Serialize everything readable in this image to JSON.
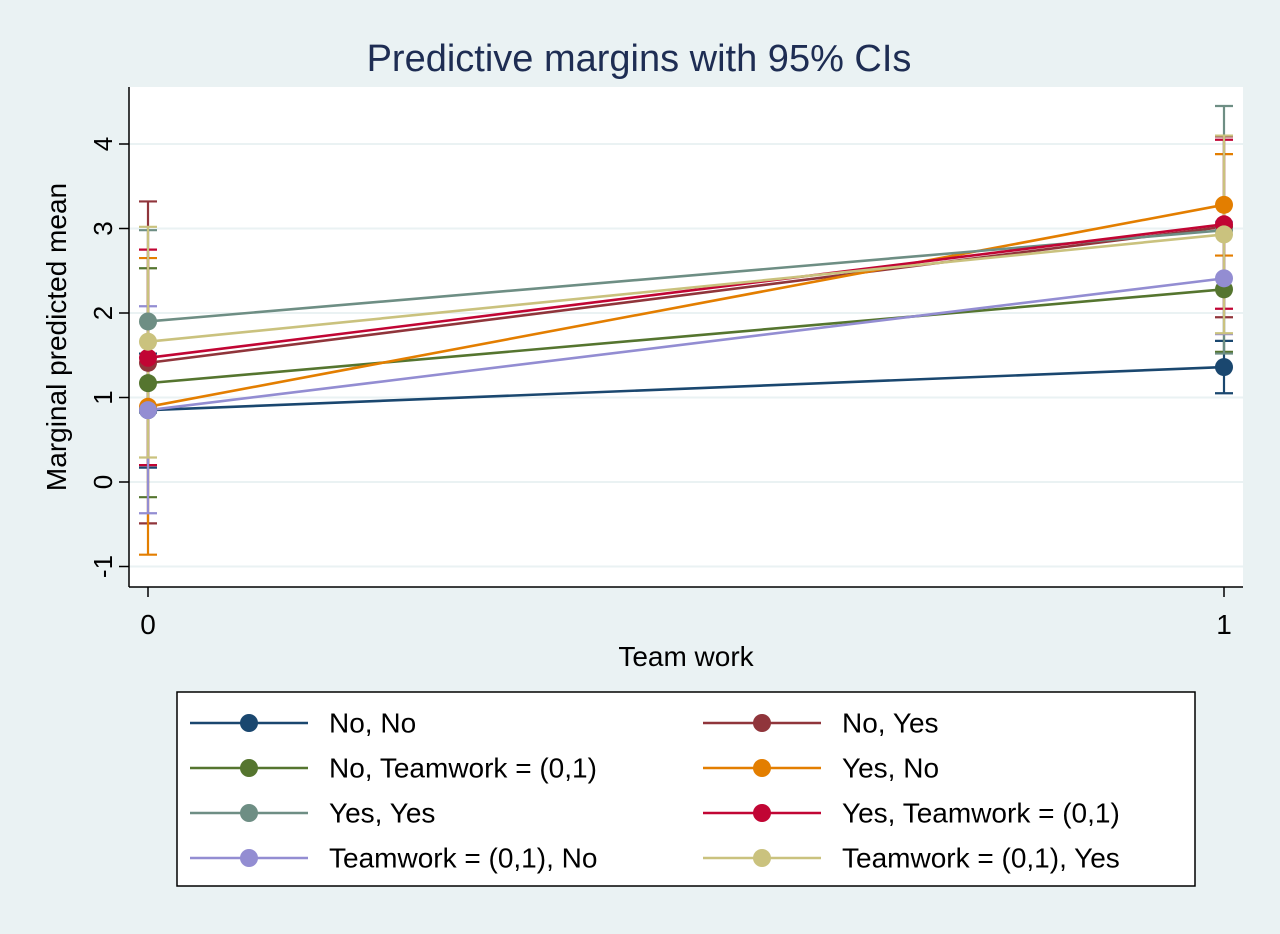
{
  "chart_data": {
    "type": "line",
    "title": "Predictive margins with 95% CIs",
    "xlabel": "Team work",
    "ylabel": "Marginal predicted mean",
    "x": [
      0,
      1
    ],
    "x_ticks": [
      "0",
      "1"
    ],
    "y_ticks": [
      -1,
      0,
      1,
      2,
      3,
      4
    ],
    "xlim": [
      -0.02,
      1.02
    ],
    "ylim": [
      -1.25,
      4.7
    ],
    "grid": true,
    "legend_position": "bottom",
    "series": [
      {
        "name": "No, No",
        "color": "#1a476f",
        "values": [
          0.85,
          1.36
        ],
        "ci_low": [
          0.17,
          1.05
        ],
        "ci_high": [
          1.52,
          1.67
        ]
      },
      {
        "name": "No, Yes",
        "color": "#90353b",
        "values": [
          1.41,
          3.02
        ],
        "ci_low": [
          -0.49,
          1.95
        ],
        "ci_high": [
          3.32,
          4.09
        ]
      },
      {
        "name": "No, Teamwork = (0,1)",
        "color": "#55752f",
        "values": [
          1.17,
          2.28
        ],
        "ci_low": [
          -0.18,
          1.54
        ],
        "ci_high": [
          2.53,
          3.02
        ]
      },
      {
        "name": "Yes, No",
        "color": "#e37e00",
        "values": [
          0.89,
          3.28
        ],
        "ci_low": [
          -0.86,
          2.68
        ],
        "ci_high": [
          2.65,
          3.88
        ]
      },
      {
        "name": "Yes, Yes",
        "color": "#6e8e84",
        "values": [
          1.9,
          2.98
        ],
        "ci_low": [
          0.82,
          1.52
        ],
        "ci_high": [
          2.98,
          4.45
        ]
      },
      {
        "name": "Yes, Teamwork = (0,1)",
        "color": "#c10534",
        "values": [
          1.47,
          3.05
        ],
        "ci_low": [
          0.2,
          2.05
        ],
        "ci_high": [
          2.75,
          4.05
        ]
      },
      {
        "name": "Teamwork = (0,1), No",
        "color": "#938dd2",
        "values": [
          0.85,
          2.41
        ],
        "ci_low": [
          -0.37,
          1.75
        ],
        "ci_high": [
          2.08,
          3.08
        ]
      },
      {
        "name": "Teamwork = (0,1), Yes",
        "color": "#cac27e",
        "values": [
          1.66,
          2.93
        ],
        "ci_low": [
          0.29,
          1.76
        ],
        "ci_high": [
          3.02,
          4.1
        ]
      }
    ]
  }
}
